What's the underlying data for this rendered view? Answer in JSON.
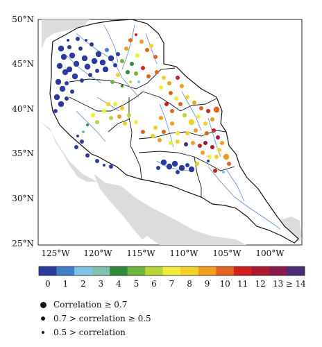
{
  "map": {
    "lat_labels": [
      "50°N",
      "45°N",
      "40°N",
      "35°N",
      "30°N",
      "25°N"
    ],
    "lon_labels": [
      "125°W",
      "120°W",
      "115°W",
      "110°W",
      "105°W",
      "100°W"
    ]
  },
  "colorbar": {
    "labels": [
      "0",
      "1",
      "2",
      "3",
      "4",
      "5",
      "6",
      "7",
      "8",
      "9",
      "10",
      "11",
      "12",
      "13",
      "≥ 14"
    ],
    "colors": [
      "#2b3a9b",
      "#3c7fc6",
      "#7fc2e8",
      "#7fbfae",
      "#2f8a3a",
      "#6fb43f",
      "#b7d43b",
      "#f2ea3d",
      "#f3cf2a",
      "#ef9e1e",
      "#e2641c",
      "#cf1f1f",
      "#ae1732",
      "#8a1a4a",
      "#4e2b78"
    ]
  },
  "legend": {
    "items": [
      {
        "label": "Correlation ≥ 0.7"
      },
      {
        "label": "0.7 > correlation ≥ 0.5"
      },
      {
        "label": "0.5 > correlation"
      }
    ]
  }
}
